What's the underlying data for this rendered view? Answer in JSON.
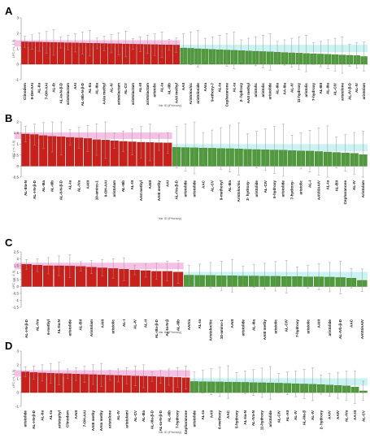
{
  "colors": {
    "red_bar": "#c8201a",
    "green_bar": "#4f9a3a",
    "pink_highlight": "#f2a6d8",
    "cyan_highlight": "#bff0f0",
    "error_bar": "#9a9a9a"
  },
  "chart_data": [
    {
      "type": "bar",
      "panel": "A",
      "ylabel": "LFC (+/- 1.5)",
      "xlabel": "Var ID (Primary)",
      "ylim": [
        -1,
        3
      ],
      "yticks": [
        -1,
        0,
        1,
        2,
        3
      ],
      "categories": [
        "Clinodem",
        "9-OH-AAI",
        "AL-IIa",
        "7-OH-AAI",
        "AL-Ib",
        "AL-Ia-N-β-D",
        "aristolactam",
        "AAI",
        "AL-IIIb-N-β-D",
        "AL-IIa",
        "AL-IIIa",
        "AAIa methyl",
        "AL-IV",
        "aristolactam",
        "AL-CV",
        "aristolactam",
        "AL-III",
        "aristolactam",
        "aristolic",
        "AL-Ia",
        "AL-IIIb",
        "AAII methyl",
        "AAII",
        "Aristolochic",
        "aristoloside",
        "AAIa",
        "9-ethoxy-7",
        "AL-Ia",
        "Cepharanone",
        "AL-Ia",
        "2- hydroxy",
        "AAII methyl",
        "aristolic",
        "aristolic",
        "aristolide",
        "AL-IIIa",
        "AA-IIIa",
        "AL-IV",
        "11-hydroxy",
        "aristolic",
        "7-hydroxy",
        "AL-BII",
        "AL-IIIa",
        "AL-CIV",
        "aristolone",
        "AL-IV-β-D",
        "AL-IV",
        "aristolam"
      ],
      "values": [
        1.45,
        1.44,
        1.43,
        1.42,
        1.41,
        1.4,
        1.39,
        1.38,
        1.37,
        1.36,
        1.35,
        1.34,
        1.33,
        1.32,
        1.31,
        1.3,
        1.29,
        1.28,
        1.27,
        1.26,
        1.25,
        1.24,
        1.05,
        1.03,
        1.0,
        0.98,
        0.96,
        0.94,
        0.92,
        0.9,
        0.88,
        0.86,
        0.84,
        0.82,
        0.8,
        0.78,
        0.76,
        0.74,
        0.72,
        0.7,
        0.68,
        0.66,
        0.64,
        0.62,
        0.6,
        0.58,
        0.56,
        0.5
      ],
      "n_red": 22,
      "label_every": 1
    },
    {
      "type": "bar",
      "panel": "B",
      "ylabel": "LFC (+/- 1.5)",
      "xlabel": "Var ID (Primary)",
      "ylim": [
        -0.5,
        2
      ],
      "yticks": [
        -0.5,
        0,
        0.5,
        1,
        1.5,
        2
      ],
      "categories": [
        "AL-IIIa-N",
        "AL-I-N-β-D",
        "AL-IIIa",
        "AL-IIIb",
        "AL-II-N-β-D",
        "AL-Ia",
        "AL-IVa",
        "AAIII",
        "10-amino-1",
        "9-OH-AAI",
        "aristolam",
        "AL-IIIb",
        "AL-III",
        "AAII methyl",
        "AAIII",
        "AAIII methy",
        "AAI",
        "AL-IVa-β-D",
        "aristolide",
        "aristolide",
        "AAC",
        "AL-CV",
        "9-methoxyl",
        "AL-IIIa",
        "Aristolochic",
        "2- hydroxy-",
        "aristolide",
        "AL-CIV",
        "5-hydroxy",
        "aristolide",
        "7-hydroxy-",
        "aristolic",
        "AL-I",
        "AAVII/AAIV",
        "AL-Ia",
        "AL-BII",
        "Cepharanone",
        "AL-IV",
        "Aristolam"
      ],
      "values": [
        1.45,
        1.43,
        1.38,
        1.35,
        1.33,
        1.3,
        1.28,
        1.25,
        1.2,
        1.18,
        1.15,
        1.12,
        1.1,
        1.08,
        1.07,
        1.06,
        1.05,
        0.85,
        0.84,
        0.83,
        0.82,
        0.81,
        0.8,
        0.79,
        0.78,
        0.76,
        0.75,
        0.74,
        0.73,
        0.72,
        0.7,
        0.69,
        0.68,
        0.66,
        0.64,
        0.62,
        0.6,
        0.58,
        0.52
      ],
      "n_red": 17,
      "label_every": 1
    },
    {
      "type": "bar",
      "panel": "C",
      "ylabel": "LFC (+/- 1.5)",
      "xlabel": "Var ID (Primary)",
      "ylim": [
        -1.5,
        2.5
      ],
      "yticks": [
        -1.5,
        -1,
        -0.5,
        0,
        0.5,
        1,
        1.5,
        2,
        2.5
      ],
      "categories": [
        "AL-I-N-β-D",
        "AL-IVa",
        "6-methyl",
        "AL-IIa-N",
        "aristolide",
        "AL-BII",
        "Aristolam",
        "AAIII",
        "aristolic",
        "AL-I",
        "AL-IV",
        "AL-II",
        "AL-IIIa-β-D",
        "AL-Ia-N-β",
        "AL-IIIb",
        "AAIVa",
        "AL-Ia",
        "Aristolochic",
        "10-amino-1",
        "AAIII",
        "aristolide",
        "AL-IIIa",
        "AAIII methy",
        "aristolic",
        "AL-CIV",
        "7-hydroxy",
        "aristolic",
        "AAIII",
        "aristolide",
        "AL-IVb-β-D",
        "AAC",
        "AAVII/AAIV"
      ],
      "values": [
        1.6,
        1.55,
        1.5,
        1.5,
        1.48,
        1.45,
        1.4,
        1.35,
        1.3,
        1.25,
        1.2,
        1.15,
        1.1,
        1.1,
        1.05,
        0.82,
        0.8,
        0.8,
        0.78,
        0.78,
        0.76,
        0.76,
        0.74,
        0.74,
        0.72,
        0.72,
        0.7,
        0.7,
        0.68,
        0.65,
        0.6,
        0.45
      ],
      "n_red": 15,
      "label_every": 1
    },
    {
      "type": "bar",
      "panel": "D",
      "ylabel": "LFC (+/- 1.5)",
      "xlabel": "Var ID (Primary)",
      "ylim": [
        -1,
        3
      ],
      "yticks": [
        -1,
        0,
        1,
        2,
        3
      ],
      "categories": [
        "aristolide",
        "AL-I-N-β-D",
        "AL-IIa",
        "AL-Ia",
        "aristophyl",
        "Clinodem",
        "AAIII",
        "7-OH-AAI",
        "AAIII methy",
        "AAIa methy",
        "aristolone",
        "AL-IV",
        "aristolami",
        "AL-CV",
        "AL-IIIa",
        "AL-IIIa-β-D",
        "AL-Ia-N-β-D",
        "AL-IIIb",
        "7-hydroxy",
        "Cepharanone",
        "aristolide",
        "AL-Ia",
        "AAII",
        "6-methoxy",
        "AAC",
        "5-hydroxy",
        "AL-IIa-N",
        "AL-IVa-N",
        "11-hydroxy",
        "aristolide",
        "AL-CIV",
        "AL-AII",
        "AL-IV",
        "AL-IIIa-β",
        "AL-IV",
        "2- hydroxy",
        "AAIV",
        "AAIV",
        "AL-IVa",
        "AA-III",
        "AL-CV"
      ],
      "values": [
        1.5,
        1.45,
        1.42,
        1.4,
        1.38,
        1.36,
        1.34,
        1.32,
        1.3,
        1.28,
        1.26,
        1.24,
        1.22,
        1.2,
        1.18,
        1.16,
        1.14,
        1.12,
        1.1,
        1.08,
        0.8,
        0.79,
        0.78,
        0.77,
        0.76,
        0.75,
        0.74,
        0.72,
        0.71,
        0.7,
        0.68,
        0.66,
        0.64,
        0.62,
        0.6,
        0.58,
        0.55,
        0.52,
        0.48,
        0.4,
        0.12
      ],
      "n_red": 20,
      "label_every": 1
    }
  ]
}
